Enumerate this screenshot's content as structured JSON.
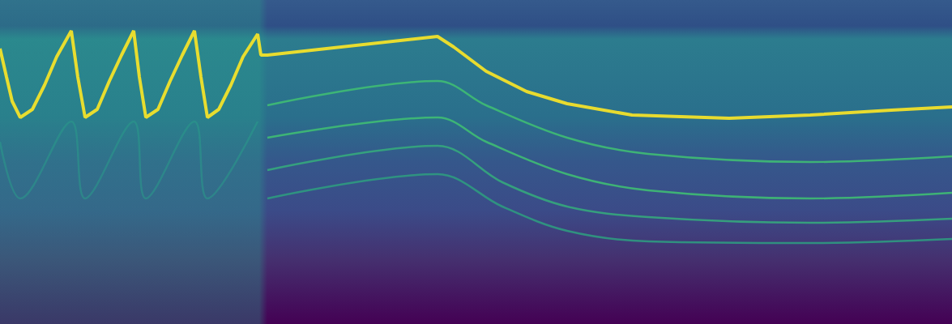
{
  "chart_data": {
    "type": "line",
    "tick_labels": false,
    "grid": false,
    "xlim": [
      0,
      1175
    ],
    "ylim": [
      0,
      400
    ],
    "series": [
      {
        "color": "#fde725",
        "x": [
          0,
          8,
          15,
          25,
          40,
          55,
          70,
          88,
          96,
          105,
          120,
          135,
          150,
          165,
          172,
          180,
          195,
          210,
          225,
          240,
          248,
          256,
          270,
          285,
          300,
          318,
          322,
          330,
          540,
          560,
          600,
          650,
          700,
          780,
          900,
          1000,
          1100,
          1175
        ],
        "values": [
          340,
          305,
          275,
          255,
          265,
          295,
          330,
          362,
          305,
          255,
          265,
          300,
          332,
          362,
          305,
          255,
          265,
          300,
          332,
          362,
          305,
          255,
          265,
          295,
          330,
          358,
          332,
          332,
          355,
          342,
          312,
          287,
          272,
          258,
          254,
          258,
          264,
          268
        ]
      },
      {
        "color": "#2a9a8a",
        "x": [
          0,
          25,
          88,
          105,
          165,
          180,
          240,
          256,
          318
        ],
        "values": [
          225,
          155,
          250,
          155,
          250,
          155,
          250,
          155,
          250
        ]
      },
      {
        "color": "#3fbc73",
        "x": [
          330,
          540,
          600,
          700,
          800,
          1000,
          1175
        ],
        "values": [
          270,
          300,
          270,
          230,
          210,
          200,
          207
        ]
      },
      {
        "color": "#3fbc73",
        "x": [
          330,
          540,
          600,
          700,
          800,
          1000,
          1175
        ],
        "values": [
          230,
          255,
          225,
          185,
          165,
          155,
          162
        ]
      },
      {
        "color": "#35a97c",
        "x": [
          330,
          540,
          620,
          700,
          800,
          1000,
          1175
        ],
        "values": [
          190,
          220,
          175,
          145,
          132,
          125,
          130
        ]
      },
      {
        "color": "#2f9a80",
        "x": [
          330,
          540,
          620,
          700,
          800,
          1000,
          1175
        ],
        "values": [
          155,
          185,
          145,
          115,
          102,
          100,
          105
        ]
      }
    ]
  }
}
